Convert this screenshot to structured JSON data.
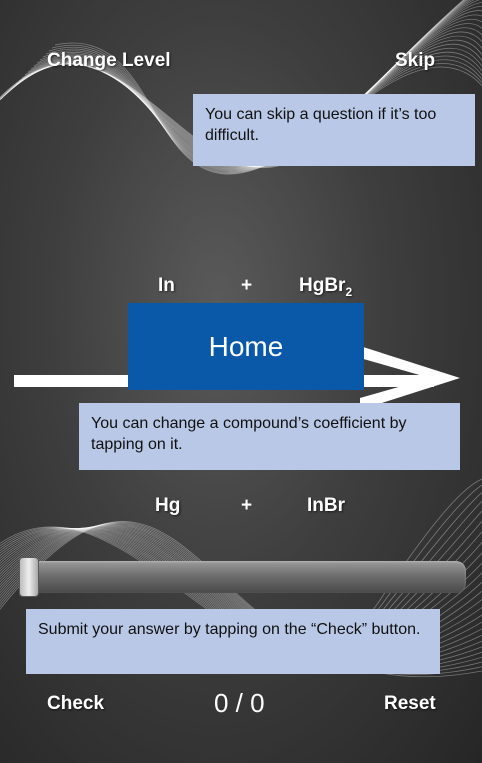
{
  "header": {
    "change_level_label": "Change Level",
    "skip_label": "Skip"
  },
  "tips": {
    "skip_tip": "You can skip a question if it’s too difficult.",
    "coefficient_tip": "You can change a compound’s coefficient by tapping on it.",
    "check_tip": "Submit your answer by tapping on the “Check” button."
  },
  "equation": {
    "reactants": [
      {
        "formula": "In"
      },
      {
        "plus": "+"
      },
      {
        "formula_base": "HgBr",
        "subscript": "2"
      }
    ],
    "products": [
      {
        "formula": "Hg"
      },
      {
        "plus": "+"
      },
      {
        "formula": "InBr"
      }
    ]
  },
  "home_button": {
    "label": "Home"
  },
  "slider": {
    "value_fraction": 0
  },
  "footer": {
    "check_label": "Check",
    "score": "0 / 0",
    "reset_label": "Reset"
  },
  "colors": {
    "tip_background": "#b8c8e6",
    "home_button": "#0a58a8"
  }
}
